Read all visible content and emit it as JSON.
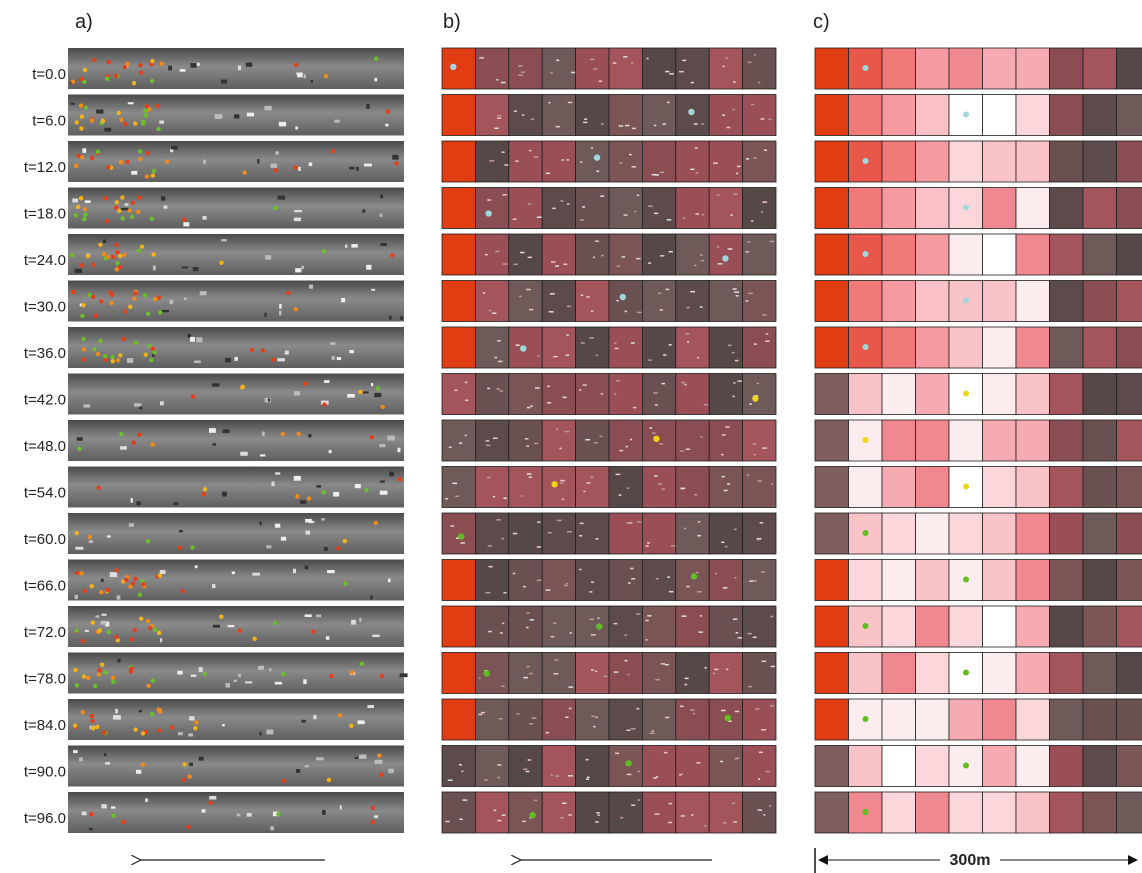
{
  "panels": [
    {
      "label": "a)"
    },
    {
      "label": "b)"
    },
    {
      "label": "c)"
    }
  ],
  "time_labels": [
    "t=0.0",
    "t=6.0",
    "t=12.0",
    "t=18.0",
    "t=24.0",
    "t=30.0",
    "t=36.0",
    "t=42.0",
    "t=48.0",
    "t=54.0",
    "t=60.0",
    "t=66.0",
    "t=72.0",
    "t=78.0",
    "t=84.0",
    "t=90.0",
    "t=96.0"
  ],
  "scale_label": "300m"
}
